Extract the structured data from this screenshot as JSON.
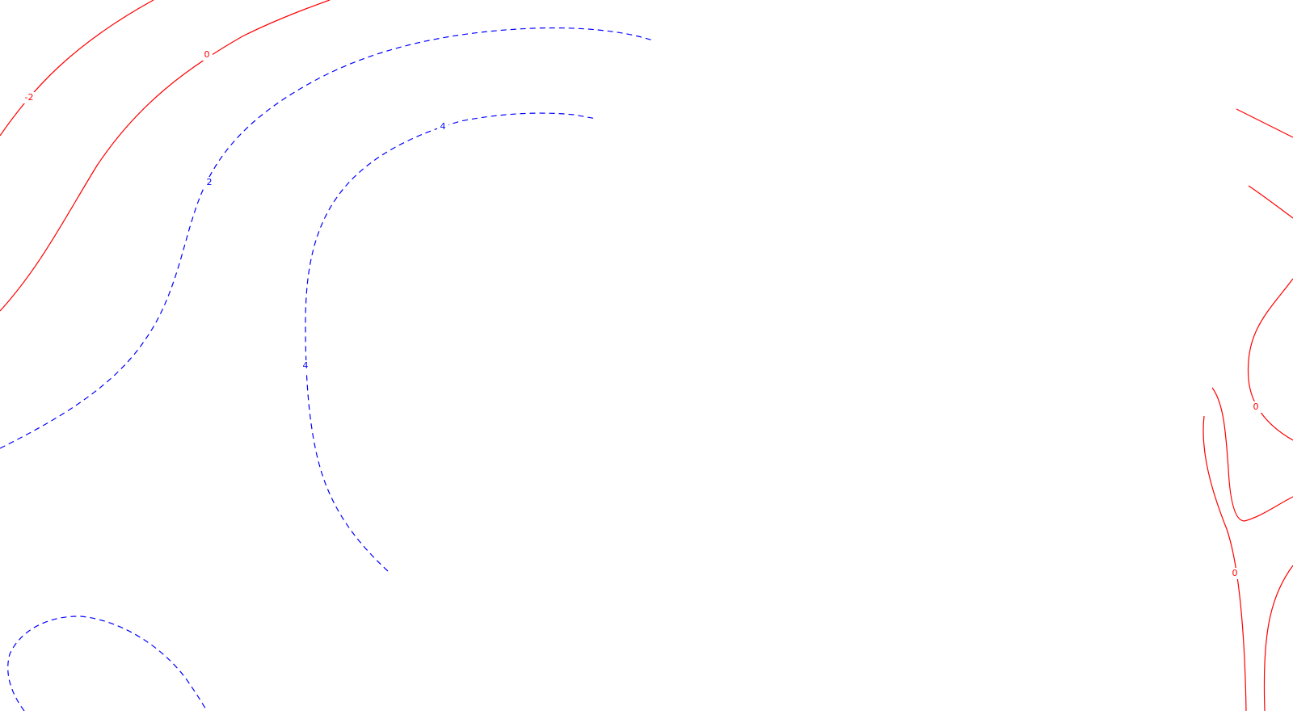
{
  "map": {
    "background": "#ffffff",
    "colors": {
      "negative_or_zero": "#ff0000",
      "positive": "#0000ff"
    },
    "contours": [
      {
        "level": -2,
        "label": "-2",
        "sign": "nonpositive",
        "style": "solid"
      },
      {
        "level": 0,
        "label": "0",
        "sign": "nonpositive",
        "style": "solid"
      },
      {
        "level": 2,
        "label": "2",
        "sign": "positive",
        "style": "dashed"
      },
      {
        "level": 4,
        "label": "4",
        "sign": "positive",
        "style": "dashed"
      }
    ],
    "labels": {
      "neg2": "-2",
      "zero_a": "0",
      "two": "2",
      "four_a": "4",
      "four_b": "4",
      "zero_b": "0",
      "zero_c": "0"
    }
  }
}
